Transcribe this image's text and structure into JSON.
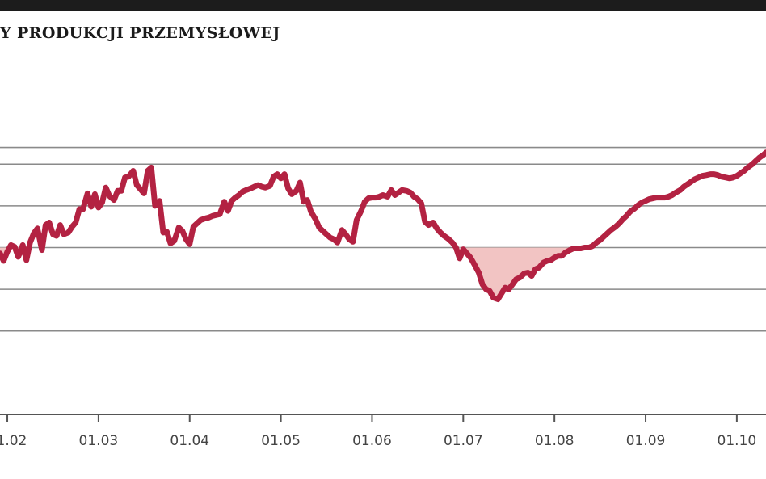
{
  "header": {
    "title": "Y PRODUKCJI PRZEMYSŁOWEJ"
  },
  "chart_data": {
    "type": "area",
    "title": "Y PRODUKCJI PRZEMYSŁOWEJ",
    "xlabel": "",
    "ylabel": "",
    "x_tick_labels": [
      "01.02",
      "01.03",
      "01.04",
      "01.05",
      "01.06",
      "01.07",
      "01.08",
      "01.09",
      "01.10"
    ],
    "x_tick_positions": [
      2002,
      2003,
      2004,
      2005,
      2006,
      2007,
      2008,
      2009,
      2010
    ],
    "xlim": [
      2001.92,
      2010.32
    ],
    "ylim": [
      -20,
      20
    ],
    "y_gridlines": [
      -10,
      -5,
      0,
      5,
      10,
      12
    ],
    "grid": true,
    "baseline": 0,
    "negative_fill_color": "#f2c4c3",
    "line_color": "#b32242",
    "series": [
      {
        "x": [
          2001.92,
          2001.96,
          2002.0,
          2002.04,
          2002.08,
          2002.12,
          2002.17,
          2002.21,
          2002.25,
          2002.29,
          2002.33,
          2002.38,
          2002.42,
          2002.46,
          2002.5,
          2002.54,
          2002.58,
          2002.62,
          2002.67,
          2002.71,
          2002.75,
          2002.79,
          2002.83,
          2002.88,
          2002.92,
          2002.96,
          2003.0,
          2003.04,
          2003.08,
          2003.12,
          2003.17,
          2003.21,
          2003.25,
          2003.29,
          2003.33,
          2003.38,
          2003.42,
          2003.46,
          2003.5,
          2003.54,
          2003.58,
          2003.62,
          2003.67,
          2003.71,
          2003.75,
          2003.79,
          2003.83,
          2003.88,
          2003.92,
          2003.96,
          2004.0,
          2004.04,
          2004.08,
          2004.12,
          2004.17,
          2004.21,
          2004.25,
          2004.29,
          2004.33,
          2004.38,
          2004.42,
          2004.46,
          2004.5,
          2004.54,
          2004.58,
          2004.62,
          2004.67,
          2004.71,
          2004.75,
          2004.79,
          2004.83,
          2004.88,
          2004.92,
          2004.96,
          2005.0,
          2005.04,
          2005.08,
          2005.12,
          2005.17,
          2005.21,
          2005.25,
          2005.29,
          2005.33,
          2005.38,
          2005.42,
          2005.46,
          2005.5,
          2005.54,
          2005.58,
          2005.62,
          2005.67,
          2005.71,
          2005.75,
          2005.79,
          2005.83,
          2005.88,
          2005.92,
          2005.96,
          2006.0,
          2006.04,
          2006.08,
          2006.12,
          2006.17,
          2006.21,
          2006.25,
          2006.29,
          2006.33,
          2006.38,
          2006.42,
          2006.46,
          2006.5,
          2006.54,
          2006.58,
          2006.62,
          2006.67,
          2006.71,
          2006.75,
          2006.79,
          2006.83,
          2006.88,
          2006.92,
          2006.96,
          2007.0,
          2007.04,
          2007.08,
          2007.12,
          2007.17,
          2007.21,
          2007.25,
          2007.29,
          2007.33,
          2007.38,
          2007.42,
          2007.46,
          2007.5,
          2007.54,
          2007.58,
          2007.62,
          2007.67,
          2007.71,
          2007.75,
          2007.79,
          2007.83,
          2007.88,
          2007.92,
          2007.96,
          2008.0,
          2008.04,
          2008.08,
          2008.12,
          2008.17,
          2008.21,
          2008.25,
          2008.29,
          2008.33,
          2008.38,
          2008.42,
          2008.46,
          2008.5,
          2008.54,
          2008.58,
          2008.62,
          2008.67,
          2008.71,
          2008.75,
          2008.79,
          2008.83,
          2008.88,
          2008.92,
          2008.96,
          2009.0,
          2009.04,
          2009.08,
          2009.12,
          2009.17,
          2009.21,
          2009.25,
          2009.29,
          2009.33,
          2009.38,
          2009.42,
          2009.46,
          2009.5,
          2009.54,
          2009.58,
          2009.62,
          2009.67,
          2009.71,
          2009.75,
          2009.79,
          2009.83,
          2009.88,
          2009.92,
          2009.96,
          2010.0,
          2010.04,
          2010.08,
          2010.12,
          2010.17,
          2010.21,
          2010.25,
          2010.29,
          2010.32
        ],
        "values": [
          -0.7,
          -1.6,
          -0.5,
          0.3,
          0.1,
          -1.1,
          0.3,
          -1.5,
          0.6,
          1.7,
          2.3,
          -0.3,
          2.7,
          3.0,
          1.6,
          1.4,
          2.7,
          1.6,
          1.8,
          2.5,
          3.0,
          4.6,
          4.6,
          6.5,
          4.9,
          6.4,
          4.8,
          5.4,
          7.2,
          6.2,
          5.7,
          6.8,
          6.8,
          8.4,
          8.5,
          9.2,
          7.5,
          7.0,
          6.5,
          9.2,
          9.6,
          5.0,
          5.6,
          1.8,
          1.9,
          0.5,
          0.8,
          2.4,
          2.0,
          1.0,
          0.4,
          2.5,
          2.9,
          3.3,
          3.5,
          3.6,
          3.8,
          3.9,
          4.0,
          5.5,
          4.4,
          5.6,
          6.0,
          6.3,
          6.7,
          6.9,
          7.1,
          7.3,
          7.5,
          7.3,
          7.2,
          7.4,
          8.5,
          8.8,
          8.3,
          8.8,
          7.1,
          6.4,
          6.8,
          7.8,
          5.5,
          5.7,
          4.3,
          3.4,
          2.4,
          2.0,
          1.6,
          1.2,
          1.0,
          0.6,
          2.1,
          1.6,
          1.0,
          0.7,
          3.3,
          4.4,
          5.5,
          5.9,
          6.0,
          6.0,
          6.1,
          6.3,
          6.1,
          6.9,
          6.3,
          6.6,
          6.9,
          6.8,
          6.6,
          6.1,
          5.8,
          5.3,
          3.1,
          2.7,
          3.0,
          2.3,
          1.8,
          1.4,
          1.1,
          0.6,
          0.0,
          -1.3,
          -0.2,
          -0.7,
          -1.2,
          -2.0,
          -3.0,
          -4.4,
          -5.0,
          -5.2,
          -6.0,
          -6.2,
          -5.5,
          -4.8,
          -5.0,
          -4.4,
          -3.8,
          -3.6,
          -3.1,
          -3.0,
          -3.4,
          -2.6,
          -2.4,
          -1.8,
          -1.6,
          -1.5,
          -1.2,
          -1.0,
          -1.0,
          -0.6,
          -0.3,
          -0.1,
          -0.1,
          -0.1,
          0.0,
          0.0,
          0.2,
          0.6,
          0.9,
          1.3,
          1.7,
          2.1,
          2.5,
          2.9,
          3.4,
          3.8,
          4.3,
          4.7,
          5.1,
          5.4,
          5.6,
          5.8,
          5.9,
          6.0,
          6.0,
          6.0,
          6.1,
          6.3,
          6.6,
          6.9,
          7.3,
          7.6,
          7.9,
          8.2,
          8.4,
          8.6,
          8.7,
          8.8,
          8.8,
          8.7,
          8.5,
          8.4,
          8.3,
          8.4,
          8.6,
          8.9,
          9.2,
          9.6,
          10.0,
          10.4,
          10.8,
          11.1,
          11.4
        ]
      }
    ]
  }
}
